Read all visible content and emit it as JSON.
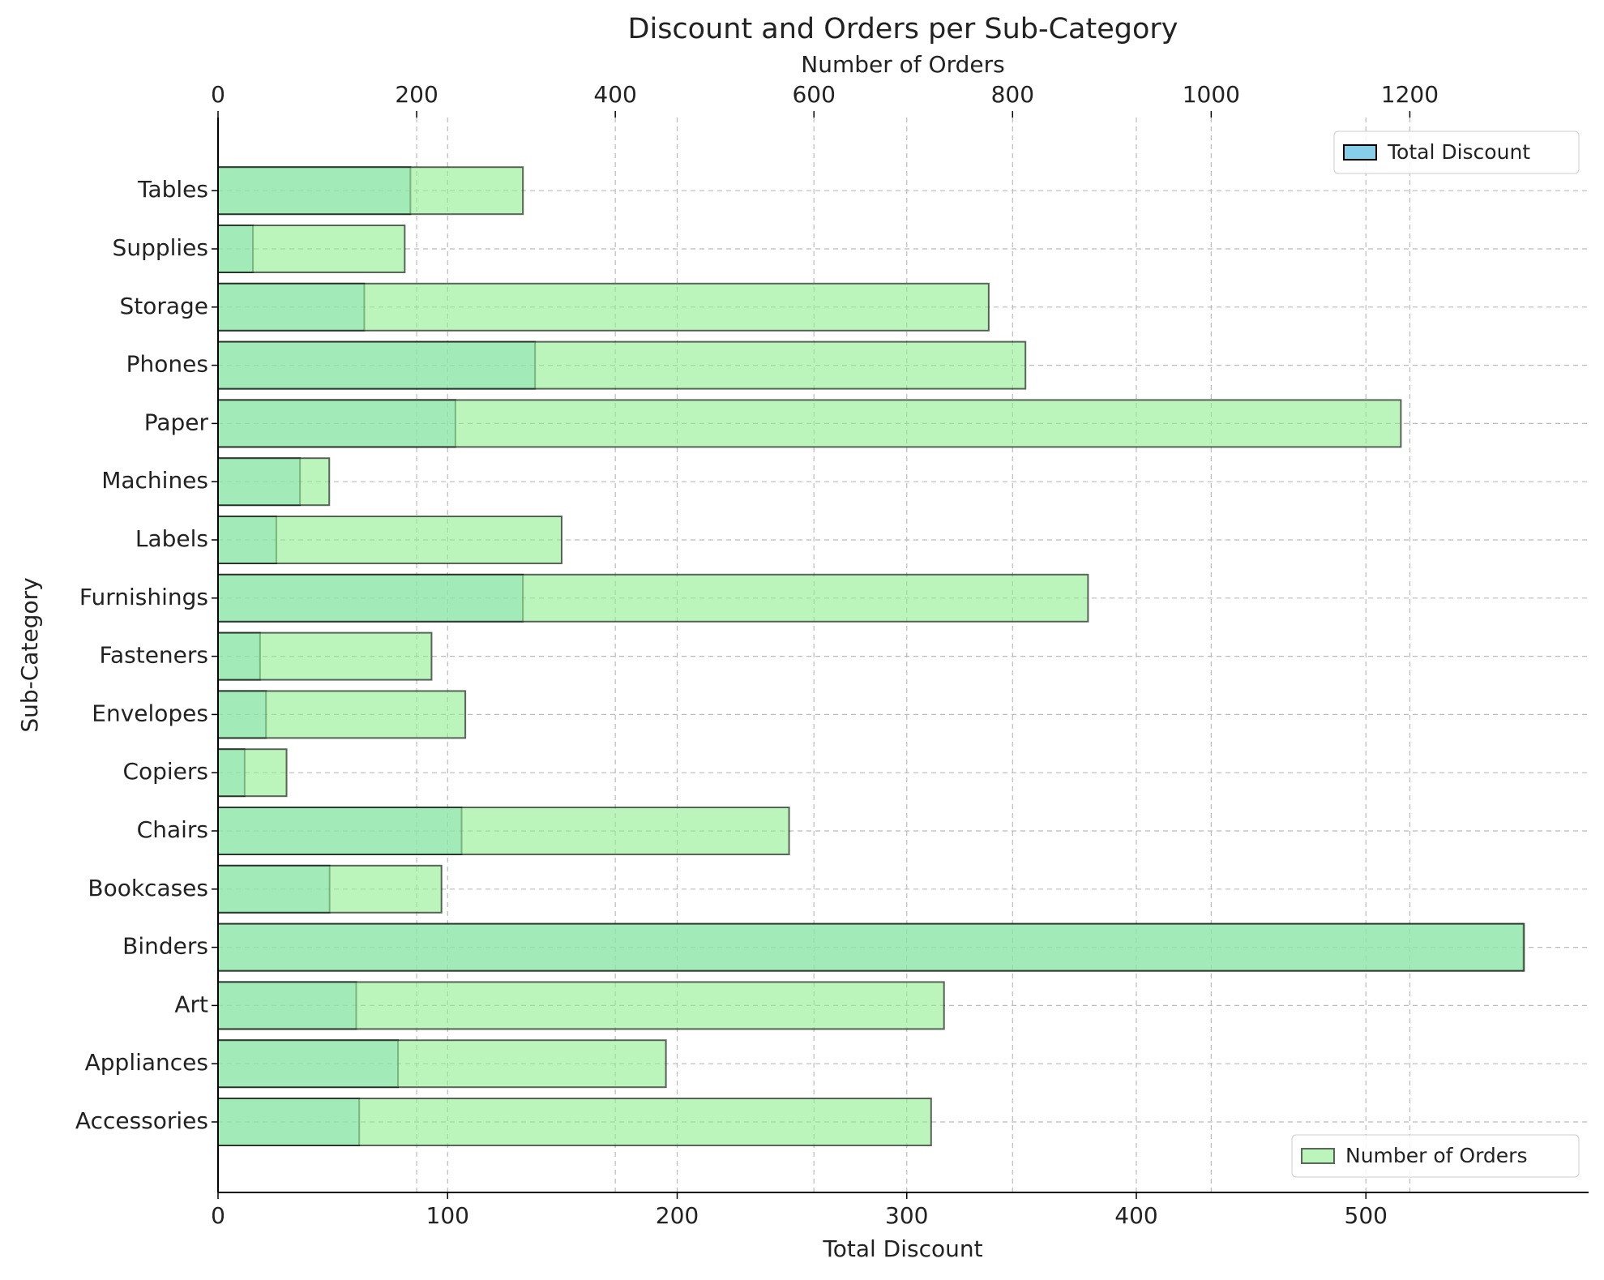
{
  "chart_data": {
    "type": "bar",
    "orientation": "horizontal",
    "title": "Discount and Orders per Sub-Category",
    "x_label": "Total Discount",
    "x2_label": "Number of Orders",
    "y_label": "Sub-Category",
    "categories": [
      "Accessories",
      "Appliances",
      "Art",
      "Binders",
      "Bookcases",
      "Chairs",
      "Copiers",
      "Envelopes",
      "Fasteners",
      "Furnishings",
      "Labels",
      "Machines",
      "Paper",
      "Phones",
      "Storage",
      "Supplies",
      "Tables"
    ],
    "series": [
      {
        "name": "Total Discount",
        "color": "#87ceeb",
        "axis": "x",
        "legend": "upper right",
        "values": [
          61.5,
          78.4,
          60.2,
          568.6,
          48.6,
          106.1,
          11.6,
          20.9,
          18.3,
          132.8,
          25.4,
          35.7,
          103.4,
          138.1,
          63.7,
          15.2,
          83.8
        ]
      },
      {
        "name": "Number of Orders",
        "color": "#90ee90",
        "axis": "x2",
        "legend": "lower right",
        "values": [
          718,
          451,
          731,
          1315,
          225,
          575,
          69,
          249,
          215,
          876,
          346,
          112,
          1191,
          813,
          776,
          188,
          307
        ]
      }
    ],
    "xlim": [
      0,
      597
    ],
    "xticks": [
      0,
      100,
      200,
      300,
      400,
      500
    ],
    "x2lim": [
      0,
      1380
    ],
    "x2ticks": [
      0,
      200,
      400,
      600,
      800,
      1000,
      1200
    ],
    "grid": true
  }
}
